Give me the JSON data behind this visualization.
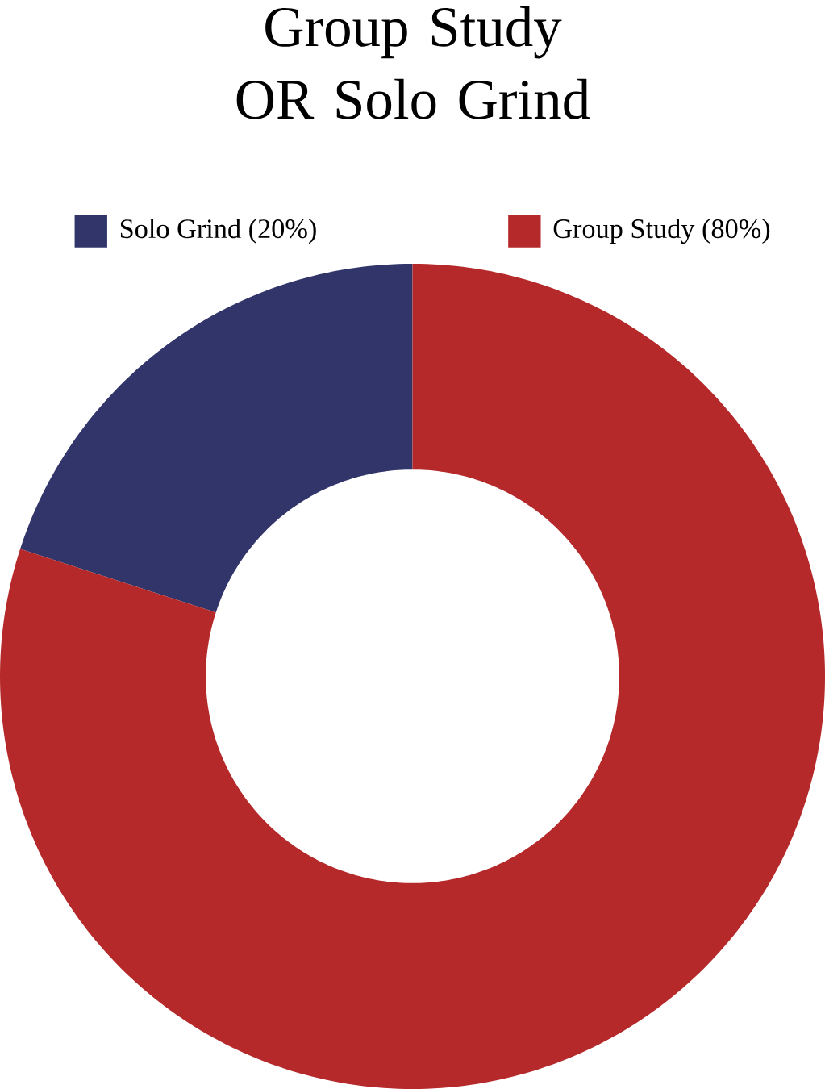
{
  "chart_data": {
    "type": "donut",
    "title": "Group Study OR Solo Grind",
    "categories": [
      "Solo Grind (20%)",
      "Group Study (80%)"
    ],
    "values": [
      20,
      80
    ],
    "colors": [
      "#313569",
      "#b5292a"
    ],
    "legend": "top"
  }
}
